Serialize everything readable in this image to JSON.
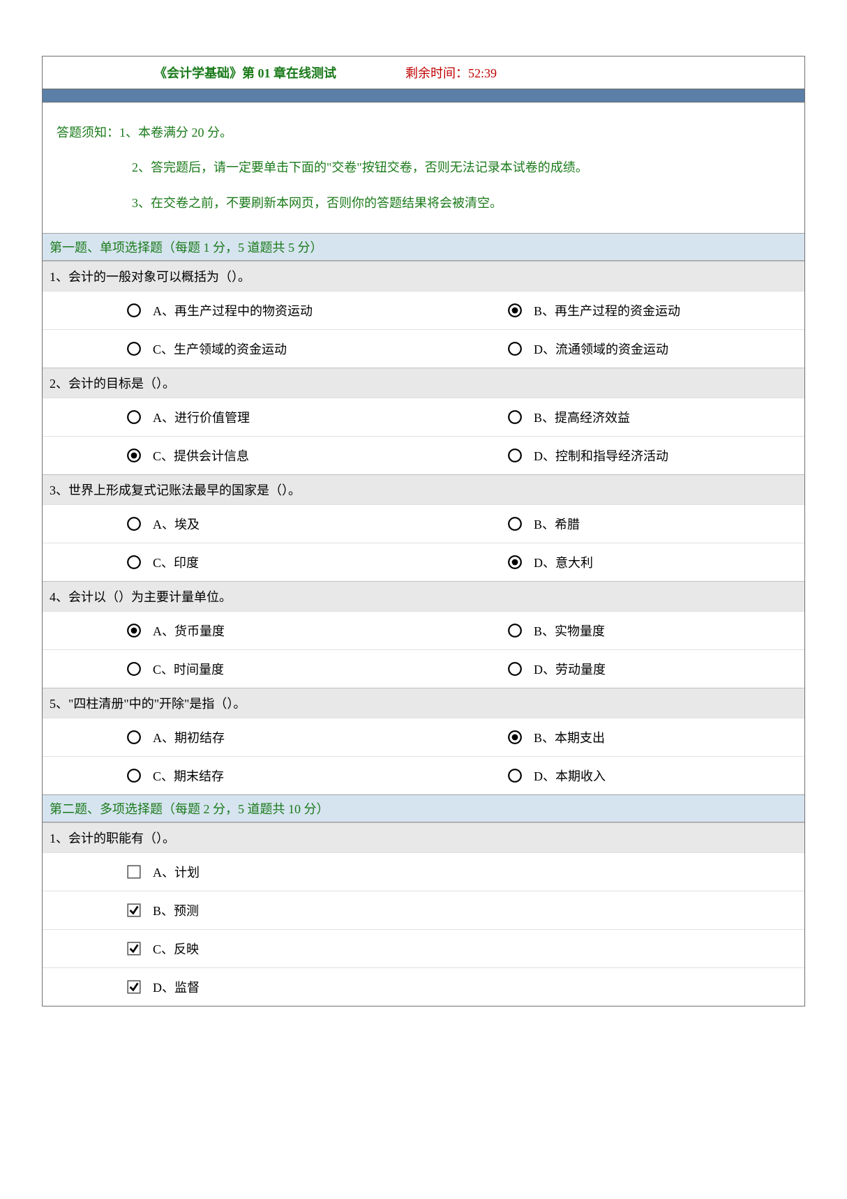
{
  "header": {
    "title": "《会计学基础》第 01 章在线测试",
    "timer_label": "剩余时间：",
    "timer_value": "52:39"
  },
  "instructions": {
    "prefix": "答题须知：",
    "lines": [
      "1、本卷满分 20 分。",
      "2、答完题后，请一定要单击下面的\"交卷\"按钮交卷，否则无法记录本试卷的成绩。",
      "3、在交卷之前，不要刷新本网页，否则你的答题结果将会被清空。"
    ]
  },
  "section1": {
    "title": "第一题、单项选择题（每题 1 分，5 道题共 5 分）",
    "questions": [
      {
        "text": "1、会计的一般对象可以概括为（）。",
        "options": [
          {
            "label": "A、再生产过程中的物资运动",
            "selected": false
          },
          {
            "label": "B、再生产过程的资金运动",
            "selected": true
          },
          {
            "label": "C、生产领域的资金运动",
            "selected": false
          },
          {
            "label": "D、流通领域的资金运动",
            "selected": false
          }
        ]
      },
      {
        "text": "2、会计的目标是（）。",
        "options": [
          {
            "label": "A、进行价值管理",
            "selected": false
          },
          {
            "label": "B、提高经济效益",
            "selected": false
          },
          {
            "label": "C、提供会计信息",
            "selected": true
          },
          {
            "label": "D、控制和指导经济活动",
            "selected": false
          }
        ]
      },
      {
        "text": "3、世界上形成复式记账法最早的国家是（）。",
        "options": [
          {
            "label": "A、埃及",
            "selected": false
          },
          {
            "label": "B、希腊",
            "selected": false
          },
          {
            "label": "C、印度",
            "selected": false
          },
          {
            "label": "D、意大利",
            "selected": true
          }
        ]
      },
      {
        "text": "4、会计以（）为主要计量单位。",
        "options": [
          {
            "label": "A、货币量度",
            "selected": true
          },
          {
            "label": "B、实物量度",
            "selected": false
          },
          {
            "label": "C、时间量度",
            "selected": false
          },
          {
            "label": "D、劳动量度",
            "selected": false
          }
        ]
      },
      {
        "text": "5、\"四柱清册\"中的\"开除\"是指（）。",
        "options": [
          {
            "label": "A、期初结存",
            "selected": false
          },
          {
            "label": "B、本期支出",
            "selected": true
          },
          {
            "label": "C、期末结存",
            "selected": false
          },
          {
            "label": "D、本期收入",
            "selected": false
          }
        ]
      }
    ]
  },
  "section2": {
    "title": "第二题、多项选择题（每题 2 分，5 道题共 10 分）",
    "questions": [
      {
        "text": "1、会计的职能有（）。",
        "options": [
          {
            "label": "A、计划",
            "checked": false
          },
          {
            "label": "B、预测",
            "checked": true
          },
          {
            "label": "C、反映",
            "checked": true
          },
          {
            "label": "D、监督",
            "checked": true
          }
        ]
      }
    ]
  },
  "colors": {
    "green_text": "#1a7a1a",
    "red_text": "#c00000",
    "blue_bar": "#5b7fa6",
    "section_bg": "#d6e4f0",
    "question_bg": "#e8e8e8",
    "border": "#707070"
  }
}
